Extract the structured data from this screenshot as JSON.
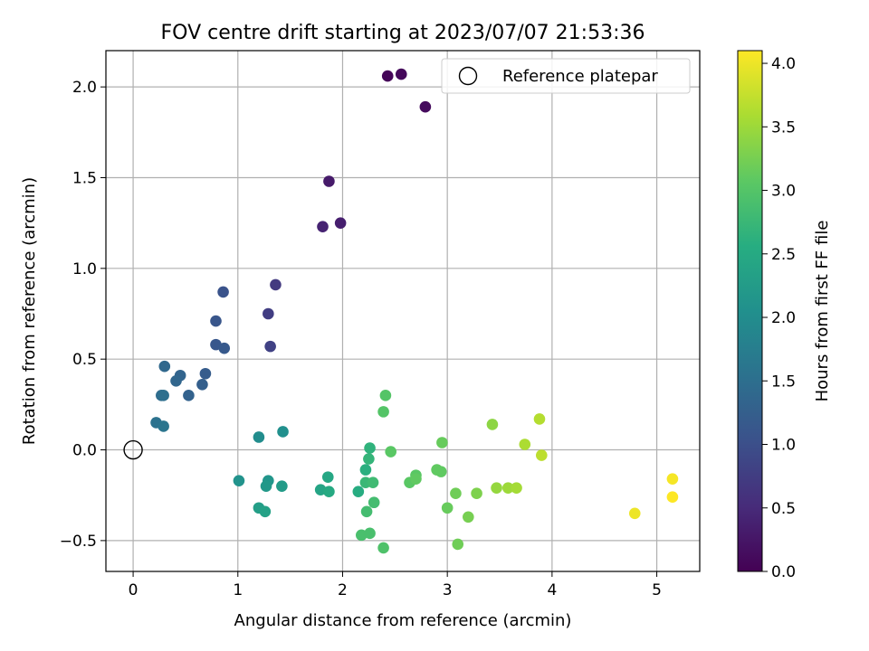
{
  "chart_data": {
    "type": "scatter",
    "title": "FOV centre drift starting at 2023/07/07 21:53:36",
    "xlabel": "Angular distance from reference (arcmin)",
    "ylabel": "Rotation from reference (arcmin)",
    "xlim": [
      -0.26,
      5.41
    ],
    "ylim": [
      -0.67,
      2.2
    ],
    "x_ticks": [
      0,
      1,
      2,
      3,
      4,
      5
    ],
    "x_tick_labels": [
      "0",
      "1",
      "2",
      "3",
      "4",
      "5"
    ],
    "y_ticks": [
      -0.5,
      0.0,
      0.5,
      1.0,
      1.5,
      2.0
    ],
    "y_tick_labels": [
      "−0.5",
      "0.0",
      "0.5",
      "1.0",
      "1.5",
      "2.0"
    ],
    "grid": true,
    "legend": {
      "placement": "top-right",
      "entries": [
        {
          "label": "Reference platepar",
          "marker": "open-circle"
        }
      ]
    },
    "reference_point": {
      "x": 0,
      "y": 0
    },
    "colorbar": {
      "label": "Hours from first FF file",
      "colormap": "viridis",
      "range": [
        0.0,
        4.1
      ],
      "ticks": [
        0.0,
        0.5,
        1.0,
        1.5,
        2.0,
        2.5,
        3.0,
        3.5,
        4.0
      ],
      "tick_labels": [
        "0.0",
        "0.5",
        "1.0",
        "1.5",
        "2.0",
        "2.5",
        "3.0",
        "3.5",
        "4.0"
      ]
    },
    "points": [
      {
        "x": 2.43,
        "y": 2.06,
        "c": 0.05
      },
      {
        "x": 2.56,
        "y": 2.07,
        "c": 0.08
      },
      {
        "x": 2.79,
        "y": 1.89,
        "c": 0.12
      },
      {
        "x": 1.87,
        "y": 1.48,
        "c": 0.3
      },
      {
        "x": 1.98,
        "y": 1.25,
        "c": 0.35
      },
      {
        "x": 1.81,
        "y": 1.23,
        "c": 0.4
      },
      {
        "x": 1.36,
        "y": 0.91,
        "c": 0.7
      },
      {
        "x": 1.29,
        "y": 0.75,
        "c": 0.75
      },
      {
        "x": 1.31,
        "y": 0.57,
        "c": 0.8
      },
      {
        "x": 0.86,
        "y": 0.87,
        "c": 1.05
      },
      {
        "x": 0.79,
        "y": 0.71,
        "c": 1.1
      },
      {
        "x": 0.79,
        "y": 0.58,
        "c": 1.12
      },
      {
        "x": 0.87,
        "y": 0.56,
        "c": 1.15
      },
      {
        "x": 0.69,
        "y": 0.42,
        "c": 1.2
      },
      {
        "x": 0.66,
        "y": 0.36,
        "c": 1.25
      },
      {
        "x": 0.53,
        "y": 0.3,
        "c": 1.3
      },
      {
        "x": 0.45,
        "y": 0.41,
        "c": 1.33
      },
      {
        "x": 0.41,
        "y": 0.38,
        "c": 1.36
      },
      {
        "x": 0.3,
        "y": 0.46,
        "c": 1.4
      },
      {
        "x": 0.27,
        "y": 0.3,
        "c": 1.45
      },
      {
        "x": 0.29,
        "y": 0.3,
        "c": 1.5
      },
      {
        "x": 0.22,
        "y": 0.15,
        "c": 1.55
      },
      {
        "x": 0.29,
        "y": 0.13,
        "c": 1.6
      },
      {
        "x": 1.2,
        "y": 0.07,
        "c": 2.0
      },
      {
        "x": 1.43,
        "y": 0.1,
        "c": 2.05
      },
      {
        "x": 1.01,
        "y": -0.17,
        "c": 2.1
      },
      {
        "x": 1.29,
        "y": -0.17,
        "c": 2.15
      },
      {
        "x": 1.27,
        "y": -0.2,
        "c": 2.2
      },
      {
        "x": 1.42,
        "y": -0.2,
        "c": 2.25
      },
      {
        "x": 1.2,
        "y": -0.32,
        "c": 2.3
      },
      {
        "x": 1.26,
        "y": -0.34,
        "c": 2.35
      },
      {
        "x": 1.79,
        "y": -0.22,
        "c": 2.4
      },
      {
        "x": 1.86,
        "y": -0.15,
        "c": 2.45
      },
      {
        "x": 1.87,
        "y": -0.23,
        "c": 2.5
      },
      {
        "x": 2.15,
        "y": -0.23,
        "c": 2.55
      },
      {
        "x": 2.22,
        "y": -0.11,
        "c": 2.6
      },
      {
        "x": 2.26,
        "y": 0.01,
        "c": 2.65
      },
      {
        "x": 2.25,
        "y": -0.05,
        "c": 2.7
      },
      {
        "x": 2.22,
        "y": -0.18,
        "c": 2.75
      },
      {
        "x": 2.29,
        "y": -0.18,
        "c": 2.8
      },
      {
        "x": 2.3,
        "y": -0.29,
        "c": 2.85
      },
      {
        "x": 2.23,
        "y": -0.34,
        "c": 2.85
      },
      {
        "x": 2.18,
        "y": -0.47,
        "c": 2.9
      },
      {
        "x": 2.26,
        "y": -0.46,
        "c": 2.9
      },
      {
        "x": 2.39,
        "y": -0.54,
        "c": 2.95
      },
      {
        "x": 2.39,
        "y": 0.21,
        "c": 3.0
      },
      {
        "x": 2.41,
        "y": 0.3,
        "c": 3.0
      },
      {
        "x": 2.46,
        "y": -0.01,
        "c": 3.05
      },
      {
        "x": 2.7,
        "y": -0.14,
        "c": 3.05
      },
      {
        "x": 2.64,
        "y": -0.18,
        "c": 3.05
      },
      {
        "x": 2.7,
        "y": -0.16,
        "c": 3.1
      },
      {
        "x": 2.9,
        "y": -0.11,
        "c": 3.1
      },
      {
        "x": 2.94,
        "y": -0.12,
        "c": 3.1
      },
      {
        "x": 2.95,
        "y": 0.04,
        "c": 3.15
      },
      {
        "x": 3.0,
        "y": -0.32,
        "c": 3.15
      },
      {
        "x": 3.08,
        "y": -0.24,
        "c": 3.2
      },
      {
        "x": 3.1,
        "y": -0.52,
        "c": 3.2
      },
      {
        "x": 3.2,
        "y": -0.37,
        "c": 3.25
      },
      {
        "x": 3.28,
        "y": -0.24,
        "c": 3.3
      },
      {
        "x": 3.43,
        "y": 0.14,
        "c": 3.4
      },
      {
        "x": 3.47,
        "y": -0.21,
        "c": 3.45
      },
      {
        "x": 3.58,
        "y": -0.21,
        "c": 3.5
      },
      {
        "x": 3.66,
        "y": -0.21,
        "c": 3.55
      },
      {
        "x": 3.74,
        "y": 0.03,
        "c": 3.6
      },
      {
        "x": 3.88,
        "y": 0.17,
        "c": 3.65
      },
      {
        "x": 3.9,
        "y": -0.03,
        "c": 3.7
      },
      {
        "x": 4.79,
        "y": -0.35,
        "c": 4.0
      },
      {
        "x": 5.15,
        "y": -0.16,
        "c": 4.05
      },
      {
        "x": 5.15,
        "y": -0.26,
        "c": 4.1
      }
    ]
  }
}
